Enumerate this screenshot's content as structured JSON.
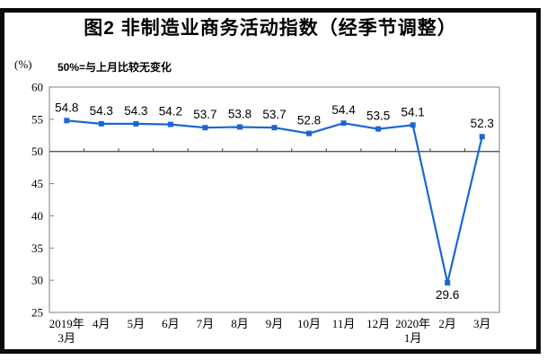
{
  "figure": {
    "title": "图2 非制造业商务活动指数（经季节调整）",
    "unit_label": "(%)",
    "note": "50%=与上月比较无变化"
  },
  "chart_data": {
    "type": "line",
    "title": "图2 非制造业商务活动指数（经季节调整）",
    "unit": "(%)",
    "note": "50%=与上月比较无变化",
    "categories": [
      [
        "2019年",
        "3月"
      ],
      [
        "4月"
      ],
      [
        "5月"
      ],
      [
        "6月"
      ],
      [
        "7月"
      ],
      [
        "8月"
      ],
      [
        "9月"
      ],
      [
        "10月"
      ],
      [
        "11月"
      ],
      [
        "12月"
      ],
      [
        "2020年",
        "1月"
      ],
      [
        "2月"
      ],
      [
        "3月"
      ]
    ],
    "series": [
      {
        "name": "非制造业商务活动指数",
        "values": [
          54.8,
          54.3,
          54.3,
          54.2,
          53.7,
          53.8,
          53.7,
          52.8,
          54.4,
          53.5,
          54.1,
          29.6,
          52.3
        ]
      }
    ],
    "ylim": [
      25,
      60
    ],
    "yticks": [
      25,
      30,
      35,
      40,
      45,
      50,
      55,
      60
    ],
    "reference_y": 50,
    "grid": false,
    "legend": "none",
    "data_labels": true,
    "label_below_indices": [
      11
    ],
    "colors": {
      "line": "#1A67D2",
      "marker": "#1A67D2",
      "plot_border": "#808080",
      "reference_line": "#404040",
      "text": "#000000",
      "frame_border": "#0b0b0b"
    }
  }
}
